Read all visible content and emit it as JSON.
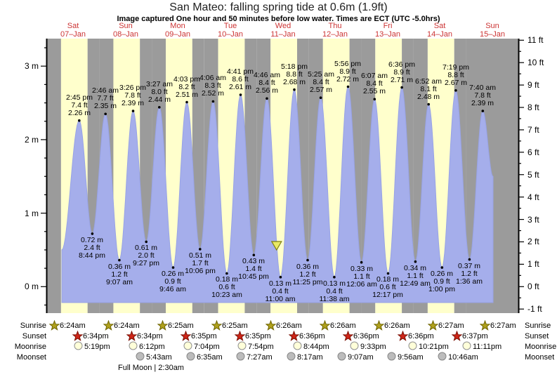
{
  "title": "San Mateo: falling  spring tide at 0.6m (1.9ft)",
  "subtitle": "Image captured One hour and 50 minutes before low water. Times are ECT (UTC -5.0hrs)",
  "days": [
    {
      "weekday": "Sat",
      "date": "07–Jan"
    },
    {
      "weekday": "Sun",
      "date": "08–Jan"
    },
    {
      "weekday": "Mon",
      "date": "09–Jan"
    },
    {
      "weekday": "Tue",
      "date": "10–Jan"
    },
    {
      "weekday": "Wed",
      "date": "11–Jan"
    },
    {
      "weekday": "Thu",
      "date": "12–Jan"
    },
    {
      "weekday": "Fri",
      "date": "13–Jan"
    },
    {
      "weekday": "Sat",
      "date": "14–Jan"
    },
    {
      "weekday": "Sun",
      "date": "15–Jan"
    }
  ],
  "axes": {
    "left_labels": [
      "3 m",
      "2 m",
      "1 m",
      "0 m"
    ],
    "right_labels": [
      "11 ft",
      "10 ft",
      "9 ft",
      "8 ft",
      "7 ft",
      "6 ft",
      "5 ft",
      "4 ft",
      "3 ft",
      "2 ft",
      "1 ft",
      "0 ft",
      "-1 ft"
    ]
  },
  "chart_data": {
    "type": "area",
    "title": "Tide height over 9 days",
    "x_categories_days": [
      "Sat 07-Jan",
      "Sun 08-Jan",
      "Mon 09-Jan",
      "Tue 10-Jan",
      "Wed 11-Jan",
      "Thu 12-Jan",
      "Fri 13-Jan",
      "Sat 14-Jan",
      "Sun 15-Jan"
    ],
    "ylim_m": [
      -0.37,
      3.42
    ],
    "ylim_ft": [
      -1.2,
      11.2
    ],
    "tides": [
      {
        "day": 0,
        "type": "high",
        "t": 14.75,
        "height_m": 2.26,
        "time": "2:45 pm",
        "label_ft": "7.4 ft",
        "label_m": "2.26 m"
      },
      {
        "day": 0,
        "type": "low",
        "t": 20.73,
        "height_m": 0.72,
        "time": "8:44 pm",
        "label_ft": "2.4 ft",
        "label_m": "0.72 m"
      },
      {
        "day": 1,
        "type": "high",
        "t": 2.77,
        "height_m": 2.35,
        "time": "2:46 am",
        "label_ft": "7.7 ft",
        "label_m": "2.35 m"
      },
      {
        "day": 1,
        "type": "low",
        "t": 9.12,
        "height_m": 0.36,
        "time": "9:07 am",
        "label_ft": "1.2 ft",
        "label_m": "0.36 m"
      },
      {
        "day": 1,
        "type": "high",
        "t": 15.43,
        "height_m": 2.39,
        "time": "3:26 pm",
        "label_ft": "7.8 ft",
        "label_m": "2.39 m"
      },
      {
        "day": 1,
        "type": "low",
        "t": 21.45,
        "height_m": 0.61,
        "time": "9:27 pm",
        "label_ft": "2.0 ft",
        "label_m": "0.61 m"
      },
      {
        "day": 2,
        "type": "high",
        "t": 3.45,
        "height_m": 2.44,
        "time": "3:27 am",
        "label_ft": "8.0 ft",
        "label_m": "2.44 m"
      },
      {
        "day": 2,
        "type": "low",
        "t": 9.77,
        "height_m": 0.26,
        "time": "9:46 am",
        "label_ft": "0.9 ft",
        "label_m": "0.26 m"
      },
      {
        "day": 2,
        "type": "high",
        "t": 16.05,
        "height_m": 2.51,
        "time": "4:03 pm",
        "label_ft": "8.2 ft",
        "label_m": "2.51 m"
      },
      {
        "day": 2,
        "type": "low",
        "t": 22.1,
        "height_m": 0.51,
        "time": "10:06 pm",
        "label_ft": "1.7 ft",
        "label_m": "0.51 m"
      },
      {
        "day": 3,
        "type": "high",
        "t": 4.1,
        "height_m": 2.52,
        "time": "4:06 am",
        "label_ft": "8.3 ft",
        "label_m": "2.52 m"
      },
      {
        "day": 3,
        "type": "low",
        "t": 10.38,
        "height_m": 0.18,
        "time": "10:23 am",
        "label_ft": "0.6 ft",
        "label_m": "0.18 m"
      },
      {
        "day": 3,
        "type": "high",
        "t": 16.68,
        "height_m": 2.61,
        "time": "4:41 pm",
        "label_ft": "8.6 ft",
        "label_m": "2.61 m"
      },
      {
        "day": 3,
        "type": "low",
        "t": 22.75,
        "height_m": 0.43,
        "time": "10:45 pm",
        "label_ft": "1.4 ft",
        "label_m": "0.43 m"
      },
      {
        "day": 4,
        "type": "high",
        "t": 4.77,
        "height_m": 2.56,
        "time": "4:46 am",
        "label_ft": "8.4 ft",
        "label_m": "2.56 m"
      },
      {
        "day": 4,
        "type": "low",
        "t": 11.0,
        "height_m": 0.13,
        "time": "11:00 am",
        "label_ft": "0.4 ft",
        "label_m": "0.13 m"
      },
      {
        "day": 4,
        "type": "high",
        "t": 17.3,
        "height_m": 2.68,
        "time": "5:18 pm",
        "label_ft": "8.8 ft",
        "label_m": "2.68 m"
      },
      {
        "day": 4,
        "type": "low",
        "t": 23.42,
        "height_m": 0.36,
        "time": "11:25 pm",
        "label_ft": "1.2 ft",
        "label_m": "0.36 m"
      },
      {
        "day": 5,
        "type": "high",
        "t": 5.42,
        "height_m": 2.57,
        "time": "5:25 am",
        "label_ft": "8.4 ft",
        "label_m": "2.57 m"
      },
      {
        "day": 5,
        "type": "low",
        "t": 11.63,
        "height_m": 0.13,
        "time": "11:38 am",
        "label_ft": "0.4 ft",
        "label_m": "0.13 m"
      },
      {
        "day": 5,
        "type": "high",
        "t": 17.93,
        "height_m": 2.72,
        "time": "5:56 pm",
        "label_ft": "8.9 ft",
        "label_m": "2.72 m"
      },
      {
        "day": 6,
        "type": "low",
        "t": 0.1,
        "height_m": 0.33,
        "time": "12:06 am",
        "label_ft": "1.1 ft",
        "label_m": "0.33 m"
      },
      {
        "day": 6,
        "type": "high",
        "t": 6.12,
        "height_m": 2.55,
        "time": "6:07 am",
        "label_ft": "8.4 ft",
        "label_m": "2.55 m"
      },
      {
        "day": 6,
        "type": "low",
        "t": 12.28,
        "height_m": 0.18,
        "time": "12:17 pm",
        "label_ft": "0.6 ft",
        "label_m": "0.18 m"
      },
      {
        "day": 6,
        "type": "high",
        "t": 18.6,
        "height_m": 2.71,
        "time": "6:36 pm",
        "label_ft": "8.9 ft",
        "label_m": "2.71 m"
      },
      {
        "day": 7,
        "type": "low",
        "t": 0.82,
        "height_m": 0.34,
        "time": "12:49 am",
        "label_ft": "1.1 ft",
        "label_m": "0.34 m"
      },
      {
        "day": 7,
        "type": "high",
        "t": 6.87,
        "height_m": 2.48,
        "time": "6:52 am",
        "label_ft": "8.1 ft",
        "label_m": "2.48 m"
      },
      {
        "day": 7,
        "type": "low",
        "t": 13.0,
        "height_m": 0.26,
        "time": "1:00 pm",
        "label_ft": "0.9 ft",
        "label_m": "0.26 m"
      },
      {
        "day": 7,
        "type": "high",
        "t": 19.32,
        "height_m": 2.67,
        "time": "7:19 pm",
        "label_ft": "8.8 ft",
        "label_m": "2.67 m"
      },
      {
        "day": 8,
        "type": "low",
        "t": 1.6,
        "height_m": 0.37,
        "time": "1:36 am",
        "label_ft": "1.2 ft",
        "label_m": "0.37 m"
      },
      {
        "day": 8,
        "type": "high",
        "t": 7.67,
        "height_m": 2.39,
        "time": "7:40 am",
        "label_ft": "7.8 ft",
        "label_m": "2.39 m"
      }
    ],
    "current_time_marker": {
      "icon": "capture-time-triangle",
      "day": 4,
      "t": 9.2
    }
  },
  "almanac": {
    "rows": [
      {
        "id": "sunrise",
        "label": "Sunrise",
        "icon": "sunrise-star-icon",
        "times": [
          "6:24am",
          "6:24am",
          "6:25am",
          "6:25am",
          "6:26am",
          "6:26am",
          "6:26am",
          "6:27am",
          "6:27am"
        ]
      },
      {
        "id": "sunset",
        "label": "Sunset",
        "icon": "sunset-star-icon",
        "times": [
          "6:34pm",
          "6:34pm",
          "6:35pm",
          "6:35pm",
          "6:36pm",
          "6:36pm",
          "6:36pm",
          "6:37pm"
        ]
      },
      {
        "id": "moonrise",
        "label": "Moonrise",
        "icon": "moonrise-circle-icon",
        "times": [
          "5:19pm",
          "6:12pm",
          "7:04pm",
          "7:54pm",
          "8:44pm",
          "9:33pm",
          "10:21pm",
          "11:11pm"
        ]
      },
      {
        "id": "moonset",
        "label": "Moonset",
        "icon": "moonset-circle-icon",
        "times": [
          "5:43am",
          "6:35am",
          "7:27am",
          "8:17am",
          "9:07am",
          "9:56am",
          "10:46am"
        ]
      }
    ],
    "footnote": "Full Moon | 2:30am"
  },
  "colors": {
    "night": "#9b9b9b",
    "daylight": "#ffffcc",
    "water": "#a5aeeb",
    "water_edge": "#98a3e6",
    "day_label": "#cc3333",
    "marker_fill": "#e9e964",
    "marker_stroke": "#7f7f12",
    "sunrise_fill": "#b0a11c",
    "sunrise_stroke": "#6e6400",
    "sunset_fill": "#cf2518",
    "sunset_stroke": "#7a1005",
    "moonrise_fill": "#ffffd9",
    "moonrise_stroke": "#929292",
    "moonset_fill": "#bcbcbc",
    "moonset_stroke": "#868686"
  }
}
